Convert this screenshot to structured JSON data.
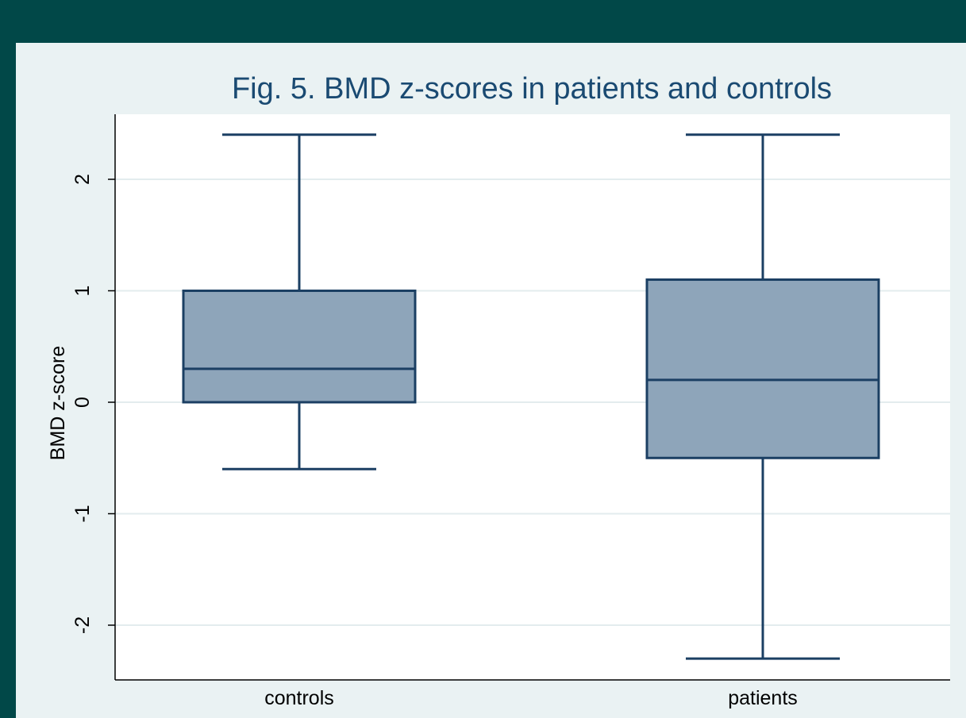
{
  "chart_data": {
    "type": "box",
    "title": "Fig. 5. BMD z-scores in patients and controls",
    "xlabel": "",
    "ylabel": "BMD z-score",
    "categories": [
      "controls",
      "patients"
    ],
    "boxes": [
      {
        "category": "controls",
        "whisker_low": -0.6,
        "q1": 0.0,
        "median": 0.3,
        "q3": 1.0,
        "whisker_high": 2.4
      },
      {
        "category": "patients",
        "whisker_low": -2.3,
        "q1": -0.5,
        "median": 0.2,
        "q3": 1.1,
        "whisker_high": 2.4
      }
    ],
    "yticks": [
      -2,
      -1,
      0,
      1,
      2
    ],
    "ytick_labels": [
      "-2",
      "-1",
      "0",
      "1",
      "2"
    ],
    "ylim": [
      -2.5,
      2.6
    ],
    "grid": true,
    "colors": {
      "background": "#014848",
      "panel": "#eaf2f3",
      "plot_area": "#ffffff",
      "box_fill": "#8ea5ba",
      "box_stroke": "#1b3f63",
      "grid": "#e3ecee",
      "title": "#1a4a72"
    }
  }
}
